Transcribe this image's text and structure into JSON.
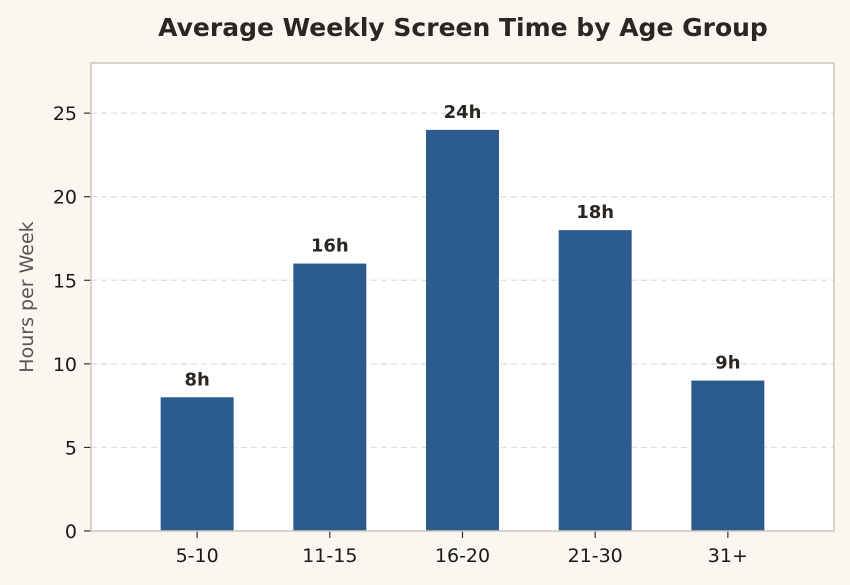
{
  "chart_data": {
    "type": "bar",
    "title": "Average Weekly Screen Time by Age Group",
    "xlabel": "",
    "ylabel": "Hours per Week",
    "categories": [
      "5-10",
      "11-15",
      "16-20",
      "21-30",
      "31+"
    ],
    "values": [
      8,
      16,
      24,
      18,
      9
    ],
    "value_labels": [
      "8h",
      "16h",
      "24h",
      "18h",
      "9h"
    ],
    "ylim": [
      0,
      28
    ],
    "yticks": [
      0,
      5,
      10,
      15,
      20,
      25
    ],
    "grid": "horizontal-dashed",
    "legend": "none"
  },
  "colors": {
    "bar": "#2b5b8c",
    "page_background": "#faf6f0",
    "plot_background": "#ffffff",
    "axis_frame": "#cfc6b8",
    "grid": "#dddddd"
  }
}
